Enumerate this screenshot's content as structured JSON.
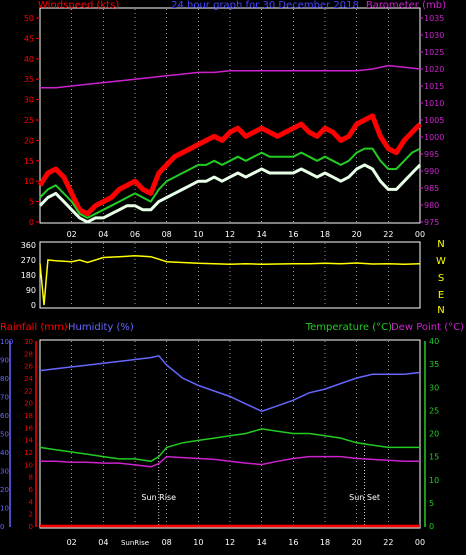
{
  "colors": {
    "windspeed": "#ff0000",
    "gust_avg": "#22cc22",
    "wind_min": "#e8ffe8",
    "barometer": "#cc22cc",
    "direction": "#ffff00",
    "rainfall": "#ff0000",
    "humidity": "#6666ff",
    "temperature": "#22cc22",
    "dewpoint": "#cc22cc",
    "compass": "#ffff00",
    "axis_left_top": "#ff0000",
    "axis_right_top": "#cc22cc",
    "axis_rain": "#ff0000",
    "axis_hum": "#6666ff",
    "axis_temp": "#22cc22",
    "grid": "#ffffff"
  },
  "chart_data": [
    {
      "type": "line",
      "title": "24 hour graph for 30 December 2018",
      "left_axis_label": "Windspeed (kts)",
      "right_axis_label": "Barometer (mb)",
      "x_ticks": [
        "02",
        "04",
        "06",
        "08",
        "10",
        "12",
        "14",
        "16",
        "18",
        "20",
        "22",
        "00"
      ],
      "y_left_ticks": [
        "0",
        "5",
        "10",
        "15",
        "20",
        "25",
        "30",
        "35",
        "40",
        "45",
        "50"
      ],
      "y_left_range": [
        0,
        50
      ],
      "y_right_ticks": [
        "975",
        "980",
        "985",
        "990",
        "995",
        "1000",
        "1005",
        "1010",
        "1015",
        "1020",
        "1025",
        "1030",
        "1035"
      ],
      "y_right_range": [
        975,
        1035
      ],
      "x_range": [
        0,
        24
      ],
      "grid": "dotted vertical",
      "series": [
        {
          "key": "windspeed",
          "x": [
            0,
            0.5,
            1,
            1.5,
            2,
            2.5,
            3,
            3.5,
            4,
            4.5,
            5,
            5.5,
            6,
            6.5,
            7,
            7.5,
            8,
            8.5,
            9,
            9.5,
            10,
            10.5,
            11,
            11.5,
            12,
            12.5,
            13,
            13.5,
            14,
            14.5,
            15,
            15.5,
            16,
            16.5,
            17,
            17.5,
            18,
            18.5,
            19,
            19.5,
            20,
            20.5,
            21,
            21.5,
            22,
            22.5,
            23,
            23.5,
            24
          ],
          "values": [
            9,
            12,
            13,
            11,
            7,
            3,
            2,
            4,
            5,
            6,
            8,
            9,
            10,
            8,
            7,
            12,
            14,
            16,
            17,
            18,
            19,
            20,
            21,
            20,
            22,
            23,
            21,
            22,
            23,
            22,
            21,
            22,
            23,
            24,
            22,
            21,
            23,
            22,
            20,
            21,
            24,
            25,
            26,
            21,
            18,
            17,
            20,
            22,
            24
          ]
        },
        {
          "key": "gust_avg",
          "x": [
            0,
            0.5,
            1,
            1.5,
            2,
            2.5,
            3,
            3.5,
            4,
            4.5,
            5,
            5.5,
            6,
            6.5,
            7,
            7.5,
            8,
            8.5,
            9,
            9.5,
            10,
            10.5,
            11,
            11.5,
            12,
            12.5,
            13,
            13.5,
            14,
            14.5,
            15,
            15.5,
            16,
            16.5,
            17,
            17.5,
            18,
            18.5,
            19,
            19.5,
            20,
            20.5,
            21,
            21.5,
            22,
            22.5,
            23,
            23.5,
            24
          ],
          "values": [
            6,
            8,
            9,
            7,
            5,
            2,
            1,
            2,
            3,
            4,
            5,
            6,
            7,
            6,
            5,
            8,
            10,
            11,
            12,
            13,
            14,
            14,
            15,
            14,
            15,
            16,
            15,
            16,
            17,
            16,
            16,
            16,
            16,
            17,
            16,
            15,
            16,
            15,
            14,
            15,
            17,
            18,
            18,
            15,
            13,
            13,
            15,
            17,
            18
          ]
        },
        {
          "key": "wind_min",
          "x": [
            0,
            0.5,
            1,
            1.5,
            2,
            2.5,
            3,
            3.5,
            4,
            4.5,
            5,
            5.5,
            6,
            6.5,
            7,
            7.5,
            8,
            8.5,
            9,
            9.5,
            10,
            10.5,
            11,
            11.5,
            12,
            12.5,
            13,
            13.5,
            14,
            14.5,
            15,
            15.5,
            16,
            16.5,
            17,
            17.5,
            18,
            18.5,
            19,
            19.5,
            20,
            20.5,
            21,
            21.5,
            22,
            22.5,
            23,
            23.5,
            24
          ],
          "values": [
            4,
            6,
            7,
            5,
            3,
            1,
            0,
            1,
            1,
            2,
            3,
            4,
            4,
            3,
            3,
            5,
            6,
            7,
            8,
            9,
            10,
            10,
            11,
            10,
            11,
            12,
            11,
            12,
            13,
            12,
            12,
            12,
            12,
            13,
            12,
            11,
            12,
            11,
            10,
            11,
            13,
            14,
            13,
            10,
            8,
            8,
            10,
            12,
            14
          ]
        },
        {
          "key": "barometer",
          "axis": "right",
          "x": [
            0,
            1,
            2,
            3,
            4,
            5,
            6,
            7,
            8,
            9,
            10,
            11,
            12,
            13,
            14,
            15,
            16,
            17,
            18,
            19,
            20,
            21,
            22,
            23,
            24
          ],
          "values": [
            1014.5,
            1014.5,
            1015,
            1015.5,
            1016,
            1016.5,
            1017,
            1017.5,
            1018,
            1018.5,
            1019,
            1019,
            1019.5,
            1019.5,
            1019.5,
            1019.5,
            1019.5,
            1019.5,
            1019.5,
            1019.5,
            1019.5,
            1020,
            1021,
            1020.5,
            1020
          ]
        }
      ]
    },
    {
      "type": "line",
      "title": "",
      "x_range": [
        0,
        24
      ],
      "y_ticks": [
        "360",
        "270",
        "180",
        "90",
        "0"
      ],
      "y_range": [
        0,
        360
      ],
      "compass_labels": [
        "N",
        "W",
        "S",
        "E",
        "N"
      ],
      "series": [
        {
          "key": "direction",
          "x": [
            0,
            0.25,
            0.5,
            1,
            2,
            2.5,
            3,
            4,
            5,
            6,
            7,
            7.5,
            8,
            9,
            10,
            11,
            12,
            13,
            14,
            15,
            16,
            17,
            18,
            19,
            20,
            21,
            22,
            23,
            24
          ],
          "values": [
            250,
            0,
            270,
            265,
            260,
            270,
            255,
            285,
            290,
            295,
            290,
            275,
            260,
            255,
            250,
            248,
            245,
            248,
            244,
            246,
            248,
            247,
            250,
            248,
            252,
            246,
            248,
            245,
            248
          ]
        }
      ]
    },
    {
      "type": "line",
      "title": "",
      "left_axis_label_1": "Rainfall (mm)",
      "left_axis_label_2": "Humidity (%)",
      "right_axis_label_1": "Temperature (°C)",
      "right_axis_label_2": "Dew Point (°C)",
      "x_ticks": [
        "02",
        "04",
        "SunRise",
        "08",
        "10",
        "12",
        "14",
        "16",
        "18",
        "20",
        "22",
        "00"
      ],
      "y_hum_ticks": [
        "0",
        "10",
        "20",
        "30",
        "40",
        "50",
        "60",
        "70",
        "80",
        "90",
        "100"
      ],
      "y_hum_range": [
        0,
        100
      ],
      "y_rain_ticks": [
        "0",
        "2",
        "4",
        "6",
        "8",
        "10",
        "12",
        "14",
        "16",
        "18",
        "20",
        "22",
        "24",
        "26",
        "28",
        "30"
      ],
      "y_rain_range": [
        0,
        30
      ],
      "y_temp_ticks": [
        "0",
        "5",
        "10",
        "15",
        "20",
        "25",
        "30",
        "35",
        "40"
      ],
      "y_temp_range": [
        0,
        40
      ],
      "x_range": [
        0,
        24
      ],
      "annotations": [
        {
          "label": "Sun Rise",
          "x": 7.5
        },
        {
          "label": "Sun Set",
          "x": 20.5
        }
      ],
      "series": [
        {
          "key": "humidity",
          "axis": "hum",
          "x": [
            0,
            1,
            2,
            3,
            4,
            5,
            6,
            7,
            7.5,
            8,
            9,
            10,
            11,
            12,
            12.5,
            13,
            13.5,
            14,
            15,
            16,
            17,
            18,
            19,
            20,
            21,
            22,
            23,
            24
          ],
          "values": [
            84,
            85,
            86,
            87,
            88,
            89,
            90,
            91,
            92,
            87,
            80,
            76,
            73,
            70,
            68,
            66,
            64,
            62,
            65,
            68,
            72,
            74,
            77,
            80,
            82,
            82,
            82,
            83
          ]
        },
        {
          "key": "rainfall",
          "axis": "rain",
          "x": [
            0,
            24
          ],
          "values": [
            0,
            0
          ]
        },
        {
          "key": "temperature",
          "axis": "temp",
          "x": [
            0,
            1,
            2,
            3,
            4,
            5,
            6,
            7,
            7.5,
            8,
            9,
            10,
            11,
            12,
            13,
            14,
            15,
            16,
            17,
            18,
            19,
            20,
            21,
            22,
            23,
            24
          ],
          "values": [
            17,
            16.5,
            16,
            15.5,
            15,
            14.5,
            14.5,
            14,
            15,
            17,
            18,
            18.5,
            19,
            19.5,
            20,
            21,
            20.5,
            20,
            20,
            19.5,
            19,
            18,
            17.5,
            17,
            17,
            17
          ]
        },
        {
          "key": "dewpoint",
          "axis": "temp",
          "x": [
            0,
            1,
            2,
            3,
            4,
            5,
            6,
            7,
            7.5,
            8,
            9,
            10,
            11,
            12,
            13,
            14,
            15,
            16,
            17,
            18,
            19,
            20,
            21,
            22,
            23,
            24
          ],
          "values": [
            14,
            14,
            13.8,
            13.8,
            13.6,
            13.6,
            13.2,
            12.8,
            13.5,
            15,
            14.8,
            14.6,
            14.4,
            14,
            13.6,
            13.3,
            14,
            14.6,
            15,
            15,
            15,
            14.6,
            14.4,
            14.2,
            14,
            14
          ]
        }
      ]
    }
  ]
}
